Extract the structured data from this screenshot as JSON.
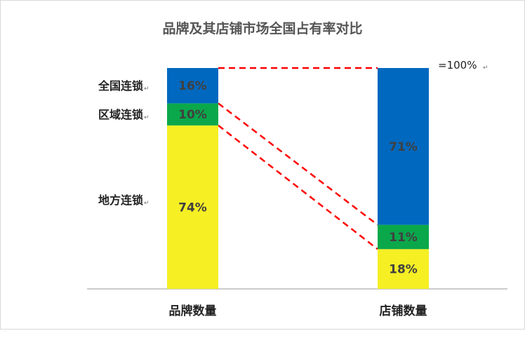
{
  "chart_data": {
    "type": "bar",
    "stacked": true,
    "normalized": true,
    "title": "品牌及其店铺市场全国占有率对比",
    "categories": [
      "品牌数量",
      "店铺数量"
    ],
    "series": [
      {
        "name": "地方连锁",
        "values": [
          74,
          18
        ],
        "labels": [
          "74%",
          "18%"
        ],
        "color": "#f5ef24"
      },
      {
        "name": "区域连锁",
        "values": [
          10,
          11
        ],
        "labels": [
          "10%",
          "11%"
        ],
        "color": "#0aa84b"
      },
      {
        "name": "全国连锁",
        "values": [
          16,
          71
        ],
        "labels": [
          "16%",
          "71%"
        ],
        "color": "#0068bf"
      }
    ],
    "ylim": [
      0,
      100
    ],
    "annotation": "=100%",
    "connector_color": "#ff0000",
    "grid": false,
    "legend": "left"
  }
}
